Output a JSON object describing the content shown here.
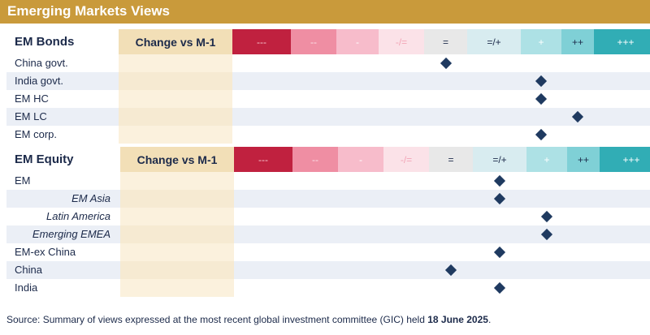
{
  "title": "Emerging Markets Views",
  "scale": [
    {
      "label": "---",
      "color": "#c0213f",
      "text": "#f4c5cf"
    },
    {
      "label": "--",
      "color": "#ef8ea3",
      "text": "#fbe3e8"
    },
    {
      "label": "-",
      "color": "#f7bccb",
      "text": "#ffffff"
    },
    {
      "label": "-/=",
      "color": "#fbe2e8",
      "text": "#f2a5b6"
    },
    {
      "label": "=",
      "color": "#e8e8e8",
      "text": "#1c2a4a"
    },
    {
      "label": "=/+",
      "color": "#d8ecf0",
      "text": "#1c2a4a"
    },
    {
      "label": "+",
      "color": "#ade1e5",
      "text": "#ffffff"
    },
    {
      "label": "++",
      "color": "#7fd0d6",
      "text": "#1c2a4a"
    },
    {
      "label": "+++",
      "color": "#31adb5",
      "text": "#ffffff"
    }
  ],
  "bonds": {
    "title": "EM Bonds",
    "change_header": "Change vs M-1",
    "rows": [
      {
        "label": "China govt.",
        "view": "=",
        "sub": false
      },
      {
        "label": "India govt.",
        "view": "+",
        "sub": false
      },
      {
        "label": "EM HC",
        "view": "+",
        "sub": false
      },
      {
        "label": "EM LC",
        "view": "++",
        "sub": false
      },
      {
        "label": "EM corp.",
        "view": "+",
        "sub": false
      }
    ]
  },
  "equity": {
    "title": "EM Equity",
    "change_header": "Change vs M-1",
    "rows": [
      {
        "label": "EM",
        "view": "=/+",
        "sub": false
      },
      {
        "label": "EM Asia",
        "view": "=/+",
        "sub": true
      },
      {
        "label": "Latin America",
        "view": "+",
        "sub": true
      },
      {
        "label": "Emerging EMEA",
        "view": "+",
        "sub": true
      },
      {
        "label": "EM-ex China",
        "view": "=/+",
        "sub": false
      },
      {
        "label": "China",
        "view": "=",
        "sub": false
      },
      {
        "label": "India",
        "view": "=/+",
        "sub": false
      }
    ]
  },
  "source": {
    "text": "Source: Summary of views expressed at the most recent global investment committee (GIC) held ",
    "date": "18 June 2025",
    "end": "."
  }
}
